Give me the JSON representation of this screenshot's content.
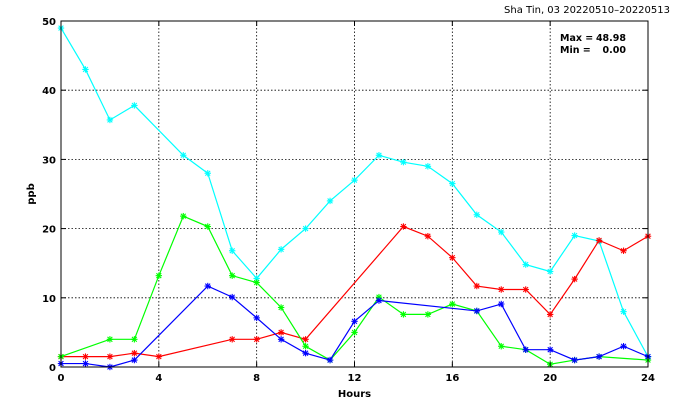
{
  "chart_data": {
    "type": "line",
    "title": "Sha Tin, 03 20220510–20220513",
    "xlabel": "Hours",
    "ylabel": "ppb",
    "xlim": [
      0,
      24
    ],
    "ylim": [
      0,
      50
    ],
    "xticks": [
      0,
      4,
      8,
      12,
      16,
      20,
      24
    ],
    "yticks": [
      0,
      10,
      20,
      30,
      40,
      50
    ],
    "grid": true,
    "stats": {
      "max_label": "Max =",
      "max_value": "48.98",
      "min_label": "Min =",
      "min_value": "0.00"
    },
    "series": [
      {
        "color": "#00ffff",
        "points": [
          [
            0,
            48.98
          ],
          [
            1,
            43
          ],
          [
            2,
            35.7
          ],
          [
            3,
            37.8
          ],
          [
            5,
            30.6
          ],
          [
            6,
            28
          ],
          [
            7,
            16.8
          ],
          [
            8,
            12.8
          ],
          [
            9,
            17
          ],
          [
            10,
            20
          ],
          [
            11,
            24
          ],
          [
            12,
            27
          ],
          [
            13,
            30.6
          ],
          [
            14,
            29.6
          ],
          [
            15,
            29
          ],
          [
            16,
            26.5
          ],
          [
            17,
            22
          ],
          [
            18,
            19.5
          ],
          [
            19,
            14.8
          ],
          [
            20,
            13.8
          ],
          [
            21,
            19
          ],
          [
            22,
            18.2
          ],
          [
            23,
            8
          ],
          [
            24,
            1.5
          ]
        ]
      },
      {
        "color": "#ff0000",
        "points": [
          [
            0,
            1.5
          ],
          [
            1,
            1.5
          ],
          [
            2,
            1.5
          ],
          [
            3,
            2
          ],
          [
            4,
            1.5
          ],
          [
            7,
            4
          ],
          [
            8,
            4
          ],
          [
            9,
            5
          ],
          [
            10,
            4
          ],
          [
            14,
            20.3
          ],
          [
            15,
            18.9
          ],
          [
            16,
            15.8
          ],
          [
            17,
            11.7
          ],
          [
            18,
            11.2
          ],
          [
            19,
            11.2
          ],
          [
            20,
            7.6
          ],
          [
            21,
            12.7
          ],
          [
            22,
            18.3
          ],
          [
            23,
            16.8
          ],
          [
            24,
            18.9
          ]
        ]
      },
      {
        "color": "#00ff00",
        "points": [
          [
            0,
            1.5
          ],
          [
            2,
            4
          ],
          [
            3,
            4
          ],
          [
            4,
            13.2
          ],
          [
            5,
            21.8
          ],
          [
            6,
            20.3
          ],
          [
            7,
            13.2
          ],
          [
            8,
            12.2
          ],
          [
            9,
            8.6
          ],
          [
            10,
            3
          ],
          [
            11,
            1
          ],
          [
            12,
            5
          ],
          [
            13,
            10.1
          ],
          [
            14,
            7.6
          ],
          [
            15,
            7.6
          ],
          [
            16,
            9.1
          ],
          [
            17,
            8.1
          ],
          [
            18,
            3
          ],
          [
            19,
            2.5
          ],
          [
            20,
            0.4
          ],
          [
            21,
            1
          ],
          [
            22,
            1.5
          ],
          [
            24,
            1
          ]
        ]
      },
      {
        "color": "#0000ff",
        "points": [
          [
            0,
            0.5
          ],
          [
            1,
            0.5
          ],
          [
            2,
            0
          ],
          [
            3,
            1
          ],
          [
            6,
            11.7
          ],
          [
            7,
            10.1
          ],
          [
            8,
            7.1
          ],
          [
            9,
            4
          ],
          [
            10,
            2
          ],
          [
            11,
            1
          ],
          [
            12,
            6.6
          ],
          [
            13,
            9.6
          ],
          [
            17,
            8.1
          ],
          [
            18,
            9.1
          ],
          [
            19,
            2.5
          ],
          [
            20,
            2.5
          ],
          [
            21,
            1
          ],
          [
            22,
            1.5
          ],
          [
            23,
            3
          ],
          [
            24,
            1.5
          ]
        ]
      }
    ]
  }
}
